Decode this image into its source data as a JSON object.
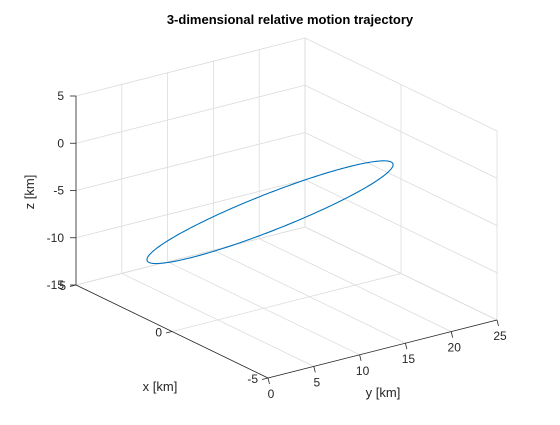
{
  "chart_data": {
    "type": "line",
    "projection": "3d",
    "title": "3-dimensional relative motion trajectory",
    "xlabel": "x [km]",
    "ylabel": "y [km]",
    "zlabel": "z [km]",
    "xlim": [
      -5,
      5
    ],
    "ylim": [
      0,
      25
    ],
    "zlim": [
      -15,
      5
    ],
    "xticks": [
      -5,
      0,
      5
    ],
    "yticks": [
      0,
      5,
      10,
      15,
      20,
      25
    ],
    "zticks": [
      -15,
      -10,
      -5,
      0,
      5
    ],
    "xtick_labels": [
      "-5",
      "0",
      "5"
    ],
    "ytick_labels": [
      "0",
      "5",
      "10",
      "15",
      "20",
      "25"
    ],
    "ztick_labels": [
      "-15",
      "-10",
      "-5",
      "0",
      "5"
    ],
    "grid": true,
    "series": [
      {
        "color": "#0072BD",
        "closed": true,
        "ellipse": {
          "center": [
            0,
            10.7,
            -5
          ],
          "axis_a": [
            -4.5,
            2,
            9.3
          ],
          "axis_b": [
            -2.5,
            -12.3,
            4.6
          ]
        }
      }
    ]
  }
}
